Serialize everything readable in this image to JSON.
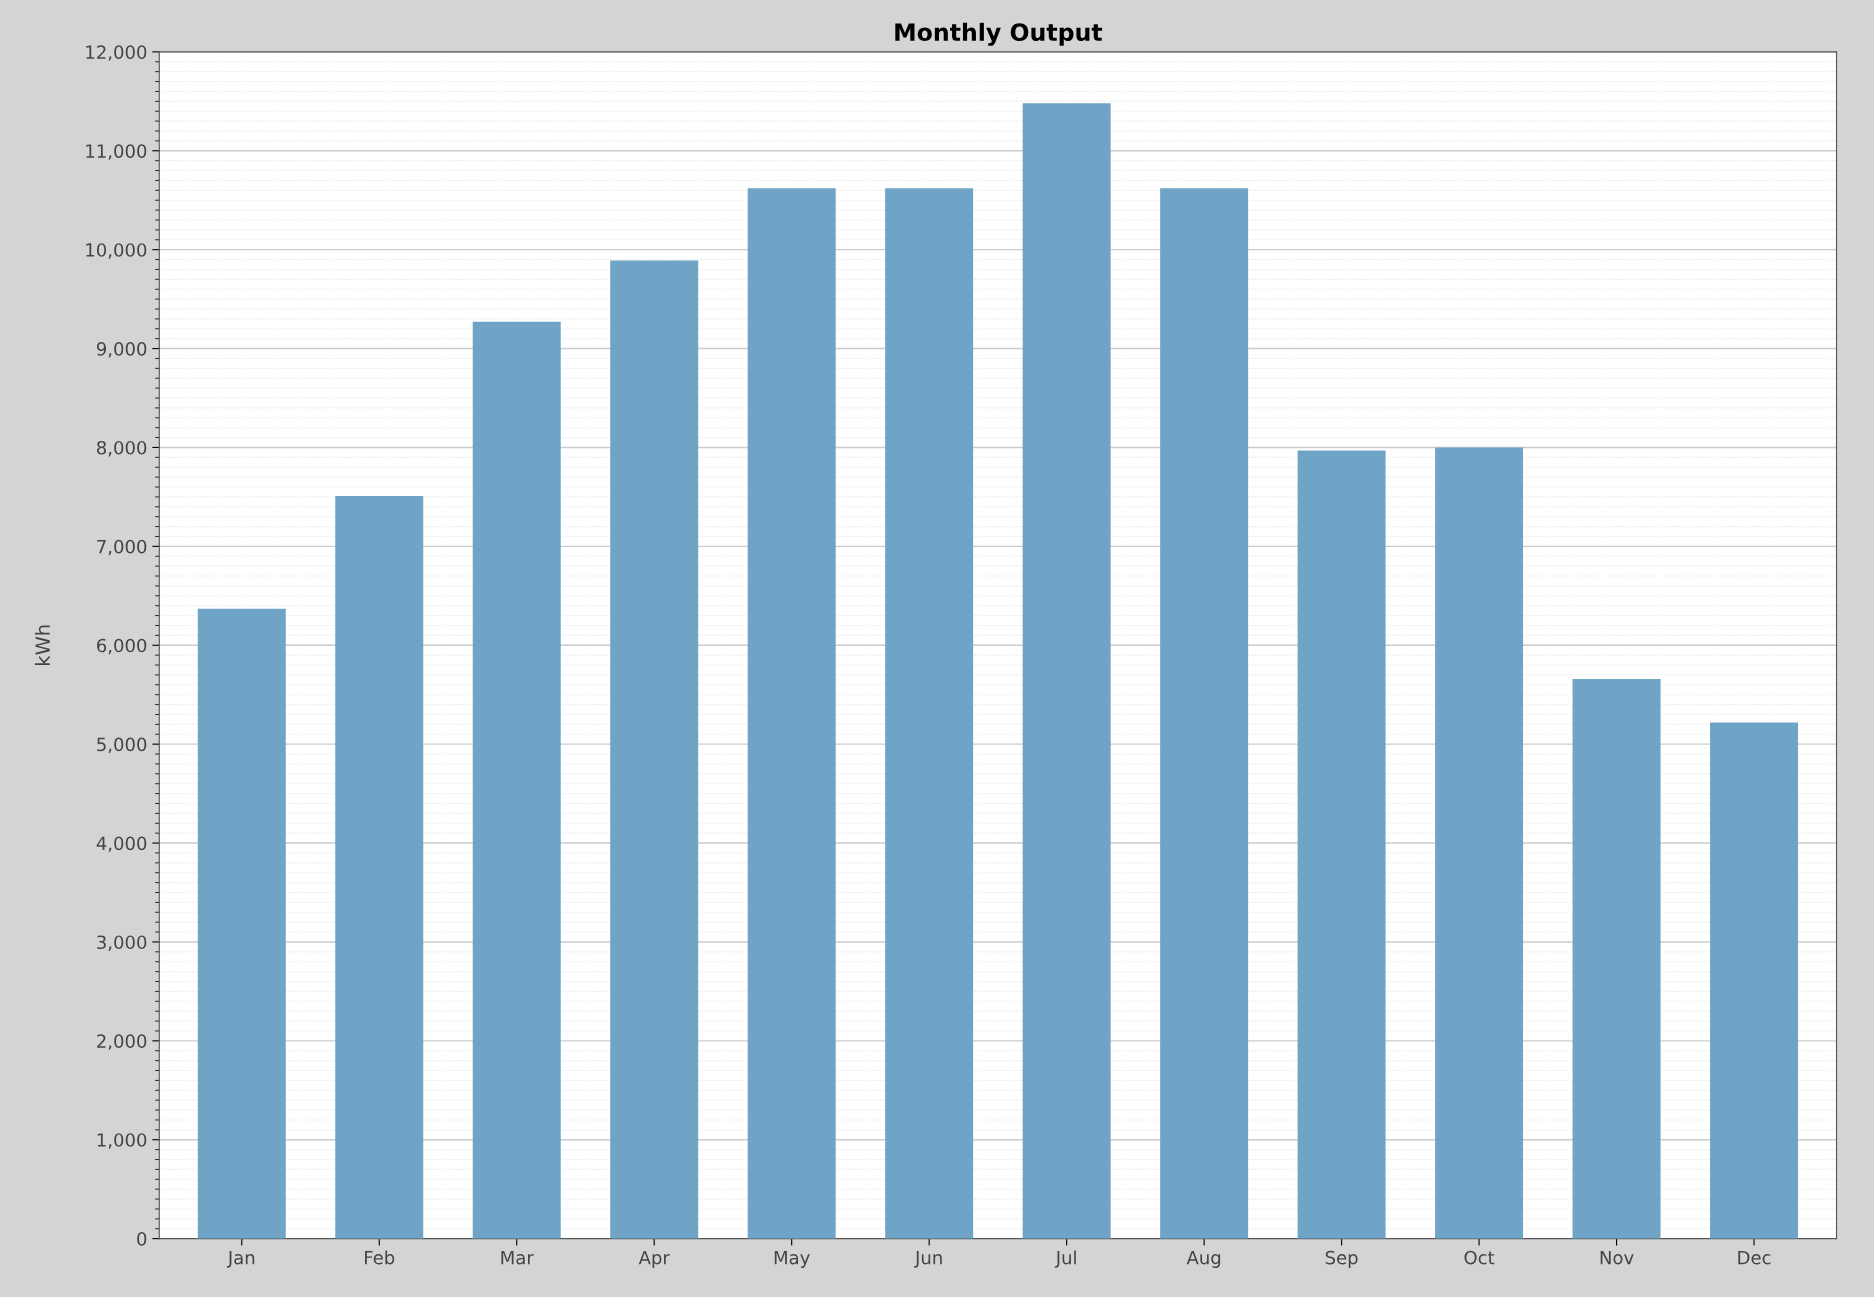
{
  "chart_data": {
    "type": "bar",
    "title": "Monthly Output",
    "ylabel": "kWh",
    "categories": [
      "Jan",
      "Feb",
      "Mar",
      "Apr",
      "May",
      "Jun",
      "Jul",
      "Aug",
      "Sep",
      "Oct",
      "Nov",
      "Dec"
    ],
    "values": [
      6370,
      7510,
      9270,
      9890,
      10620,
      10620,
      11480,
      10620,
      7970,
      8000,
      5660,
      5220
    ],
    "color": "#6fa4c6",
    "ylim": [
      0,
      12000
    ],
    "yticks": [
      {
        "value": 0,
        "label": "0"
      },
      {
        "value": 1000,
        "label": "1,000"
      },
      {
        "value": 2000,
        "label": "2,000"
      },
      {
        "value": 3000,
        "label": "3,000"
      },
      {
        "value": 4000,
        "label": "4,000"
      },
      {
        "value": 5000,
        "label": "5,000"
      },
      {
        "value": 6000,
        "label": "6,000"
      },
      {
        "value": 7000,
        "label": "7,000"
      },
      {
        "value": 8000,
        "label": "8,000"
      },
      {
        "value": 9000,
        "label": "9,000"
      },
      {
        "value": 10000,
        "label": "10,000"
      },
      {
        "value": 11000,
        "label": "11,000"
      },
      {
        "value": 12000,
        "label": "12,000"
      }
    ],
    "grid": "y"
  }
}
